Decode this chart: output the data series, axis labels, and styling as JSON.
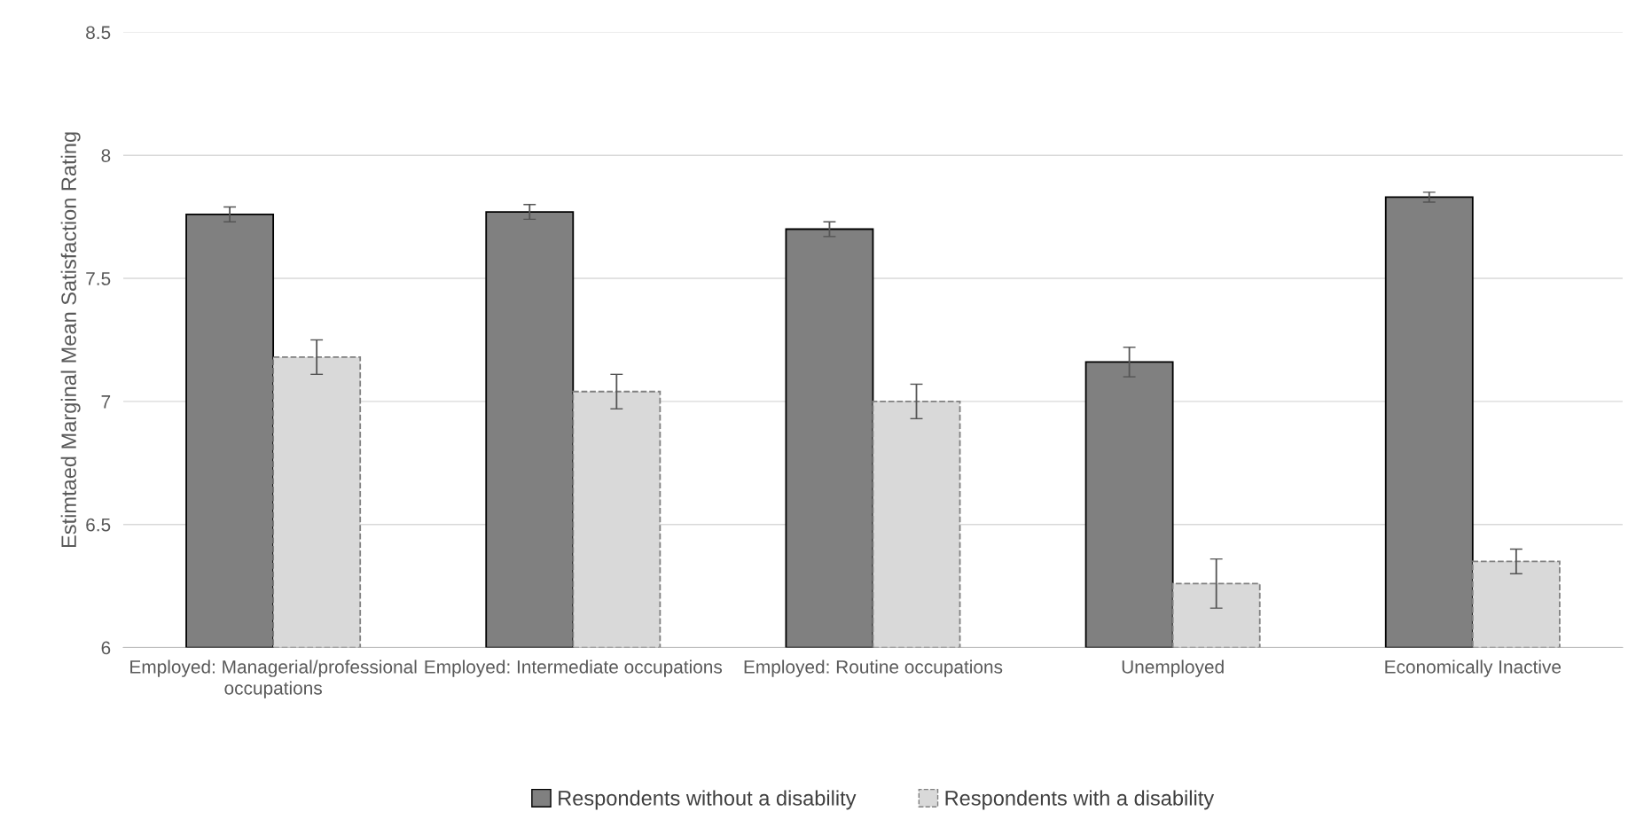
{
  "chart_data": {
    "type": "bar",
    "ylabel": "Estimtaed Marginal Mean Satisfaction Rating",
    "categories": [
      "Employed: Managerial/professional occupations",
      "Employed: Intermediate occupations",
      "Employed: Routine occupations",
      "Unemployed",
      "Economically Inactive"
    ],
    "series": [
      {
        "name": "Respondents without a disability",
        "color": "#808080",
        "line_style": "solid",
        "values": [
          7.76,
          7.77,
          7.7,
          7.16,
          7.83
        ],
        "errors": [
          0.03,
          0.03,
          0.03,
          0.06,
          0.02
        ]
      },
      {
        "name": "Respondents with a disability",
        "color": "#d9d9d9",
        "line_style": "dashed",
        "values": [
          7.18,
          7.04,
          7.0,
          6.26,
          6.35
        ],
        "errors": [
          0.07,
          0.07,
          0.07,
          0.1,
          0.05
        ]
      }
    ],
    "ylim": [
      6,
      8.5
    ],
    "yticks": [
      6,
      6.5,
      7,
      7.5,
      8,
      8.5
    ],
    "grid": "y",
    "legend": "bottom"
  }
}
